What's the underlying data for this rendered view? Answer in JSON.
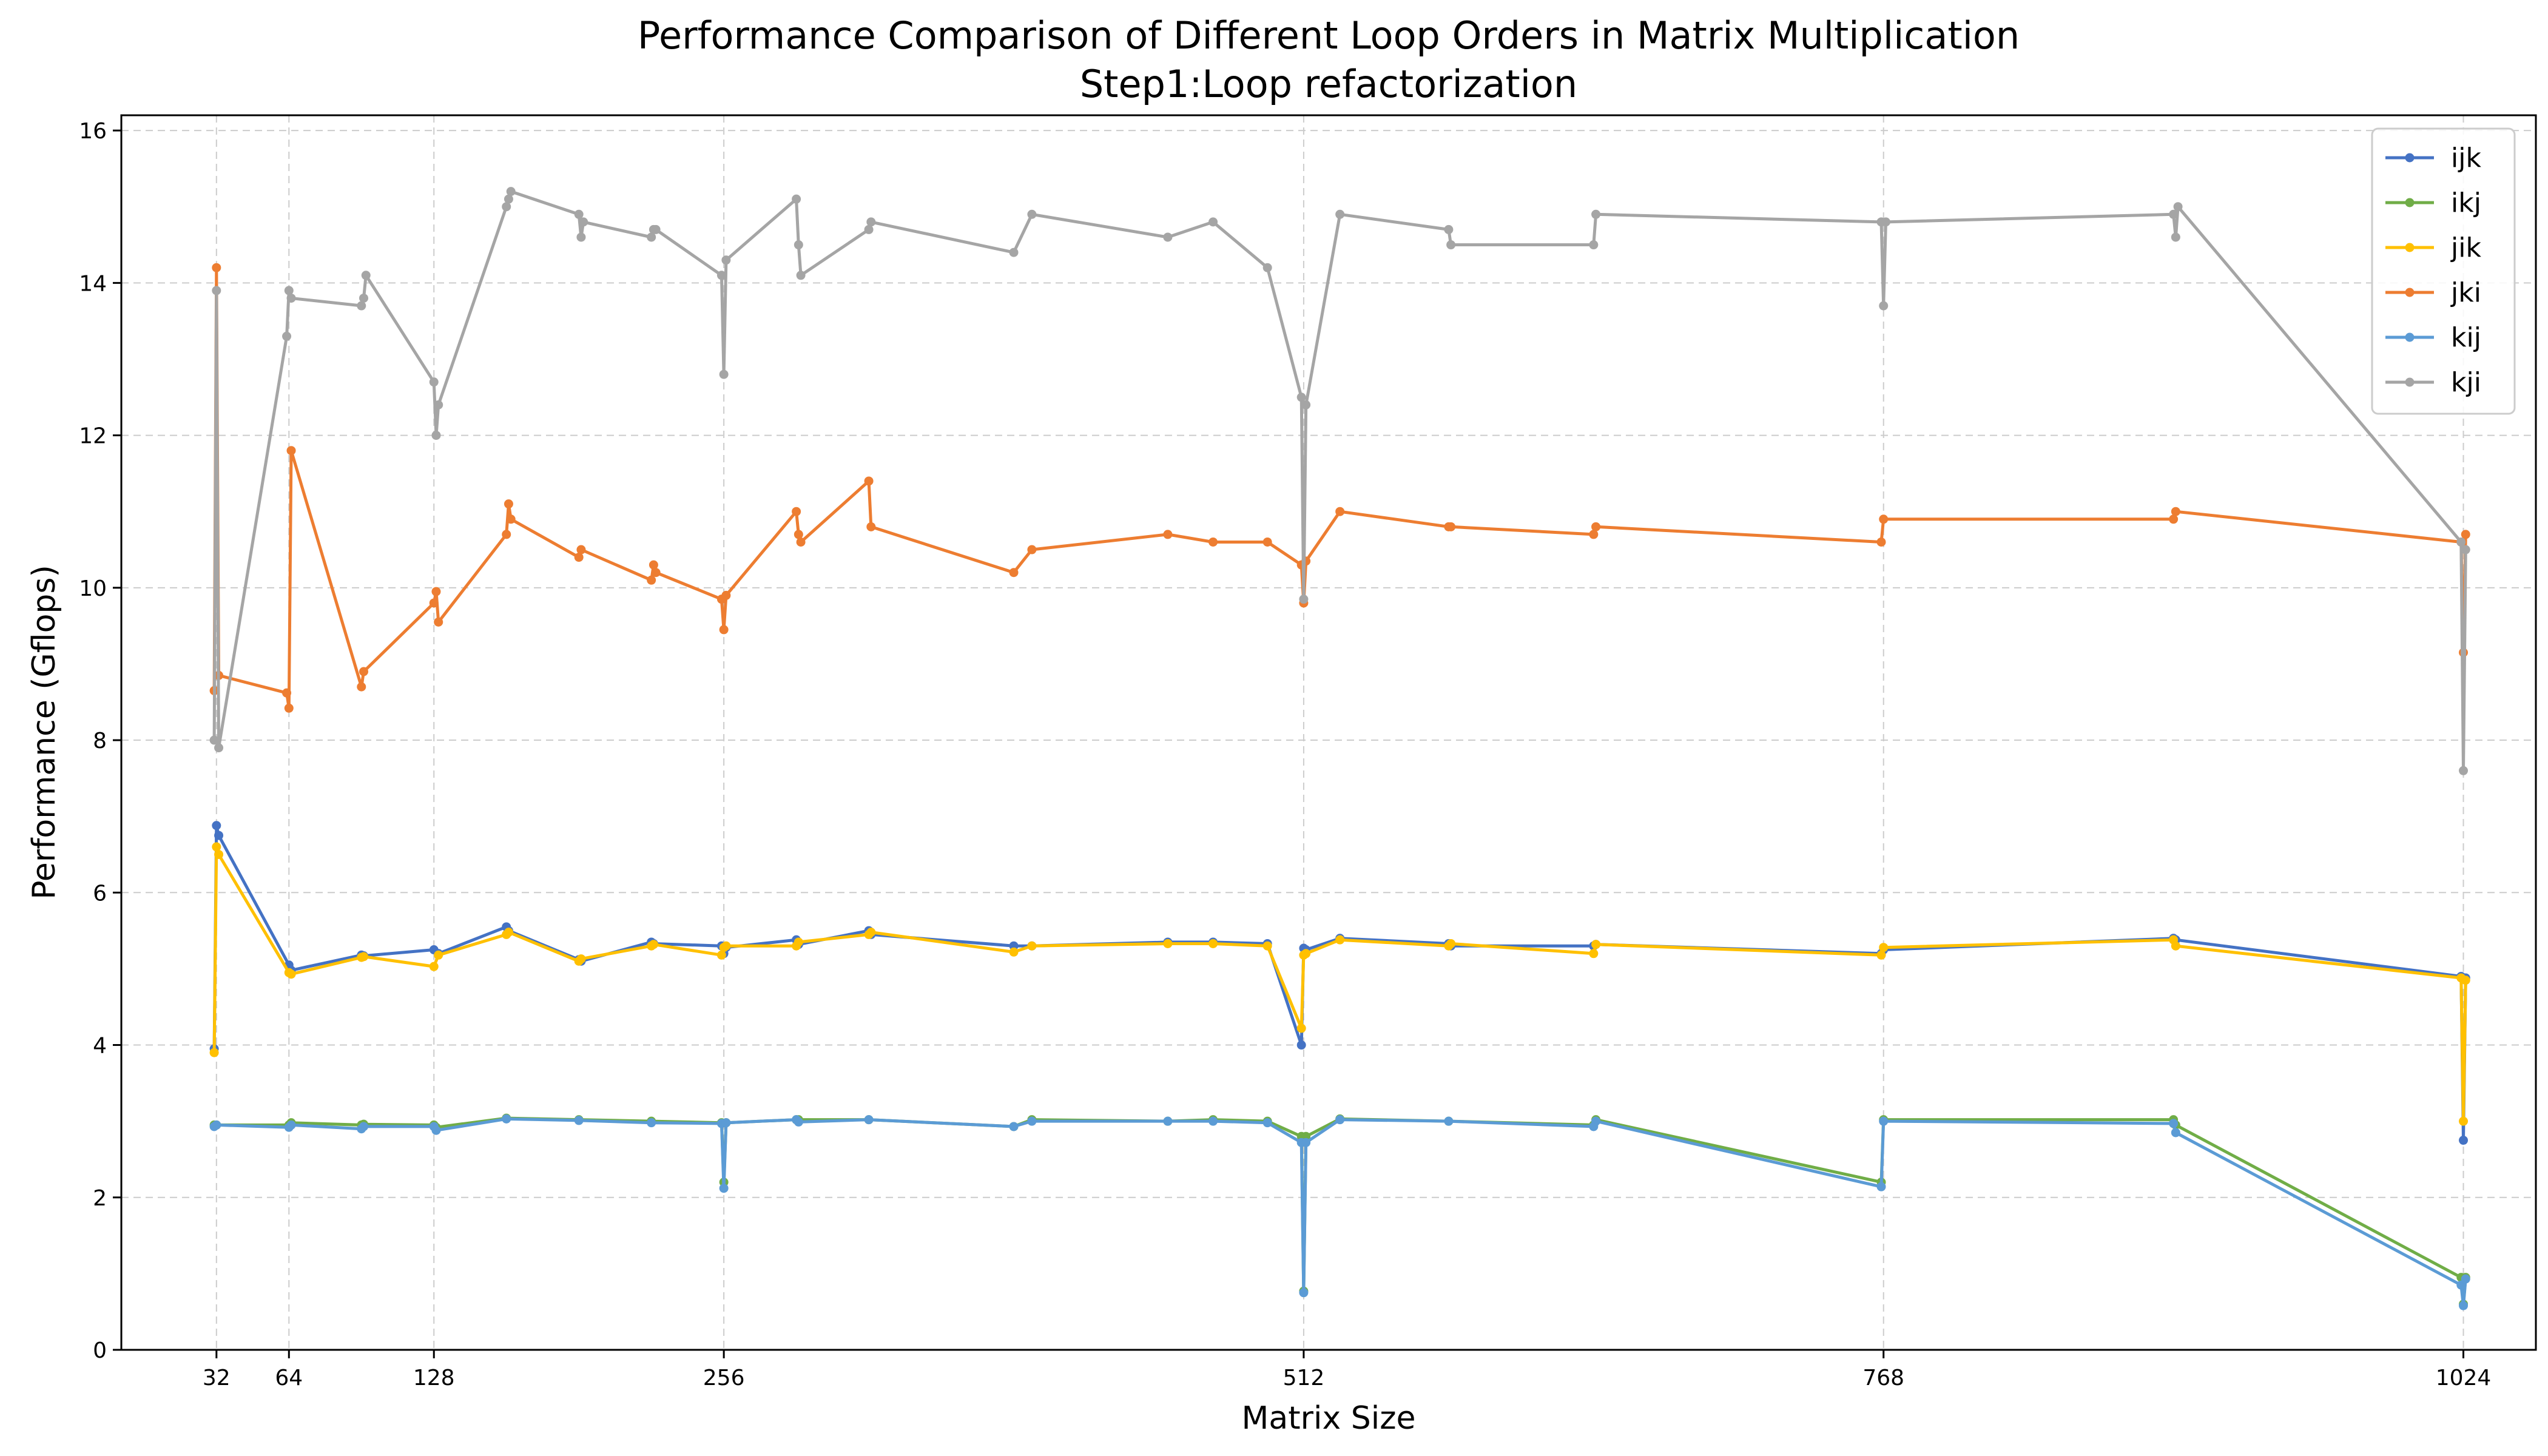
{
  "chart_data": {
    "type": "line",
    "title": "Performance Comparison of Different Loop Orders in Matrix Multiplication",
    "subtitle": "Step1:Loop refactorization",
    "xlabel": "Matrix Size",
    "ylabel": "Performance (Gflops)",
    "xlim": [
      -10,
      1056
    ],
    "ylim": [
      0,
      16.2
    ],
    "xticks": [
      32,
      64,
      128,
      256,
      512,
      768,
      1024
    ],
    "yticks": [
      0,
      2,
      4,
      6,
      8,
      10,
      12,
      14,
      16
    ],
    "grid": true,
    "legend_position": "top-right",
    "series": [
      {
        "name": "ijk",
        "color": "#4472c4",
        "points": [
          [
            31,
            3.95
          ],
          [
            32,
            6.88
          ],
          [
            33,
            6.75
          ],
          [
            64,
            5.05
          ],
          [
            65,
            4.98
          ],
          [
            96,
            5.18
          ],
          [
            97,
            5.17
          ],
          [
            128,
            5.25
          ],
          [
            130,
            5.2
          ],
          [
            160,
            5.55
          ],
          [
            161,
            5.5
          ],
          [
            192,
            5.12
          ],
          [
            193,
            5.1
          ],
          [
            224,
            5.35
          ],
          [
            225,
            5.33
          ],
          [
            255,
            5.3
          ],
          [
            256,
            5.2
          ],
          [
            257,
            5.28
          ],
          [
            288,
            5.38
          ],
          [
            289,
            5.32
          ],
          [
            320,
            5.5
          ],
          [
            321,
            5.45
          ],
          [
            384,
            5.3
          ],
          [
            392,
            5.3
          ],
          [
            452,
            5.35
          ],
          [
            472,
            5.35
          ],
          [
            496,
            5.33
          ],
          [
            511,
            4.0
          ],
          [
            512,
            5.27
          ],
          [
            513,
            5.25
          ],
          [
            528,
            5.4
          ],
          [
            576,
            5.33
          ],
          [
            577,
            5.3
          ],
          [
            640,
            5.3
          ],
          [
            641,
            5.32
          ],
          [
            767,
            5.2
          ],
          [
            768,
            5.25
          ],
          [
            896,
            5.4
          ],
          [
            897,
            5.38
          ],
          [
            1023,
            4.9
          ],
          [
            1024,
            2.75
          ],
          [
            1025,
            4.88
          ]
        ]
      },
      {
        "name": "ikj",
        "color": "#70ad47",
        "points": [
          [
            31,
            2.95
          ],
          [
            32,
            2.95
          ],
          [
            64,
            2.95
          ],
          [
            65,
            2.98
          ],
          [
            96,
            2.95
          ],
          [
            97,
            2.96
          ],
          [
            128,
            2.95
          ],
          [
            129,
            2.92
          ],
          [
            160,
            3.04
          ],
          [
            192,
            3.02
          ],
          [
            224,
            3.0
          ],
          [
            255,
            2.98
          ],
          [
            256,
            2.2
          ],
          [
            257,
            2.98
          ],
          [
            288,
            3.02
          ],
          [
            289,
            3.02
          ],
          [
            320,
            3.02
          ],
          [
            384,
            2.93
          ],
          [
            392,
            3.02
          ],
          [
            452,
            3.0
          ],
          [
            472,
            3.02
          ],
          [
            496,
            3.0
          ],
          [
            511,
            2.8
          ],
          [
            512,
            0.77
          ],
          [
            513,
            2.8
          ],
          [
            528,
            3.03
          ],
          [
            576,
            3.0
          ],
          [
            640,
            2.95
          ],
          [
            641,
            3.02
          ],
          [
            767,
            2.2
          ],
          [
            768,
            3.02
          ],
          [
            896,
            3.02
          ],
          [
            897,
            2.95
          ],
          [
            1023,
            0.95
          ],
          [
            1024,
            0.6
          ],
          [
            1025,
            0.95
          ]
        ]
      },
      {
        "name": "jik",
        "color": "#ffc000",
        "points": [
          [
            31,
            3.9
          ],
          [
            32,
            6.6
          ],
          [
            33,
            6.5
          ],
          [
            64,
            4.95
          ],
          [
            65,
            4.93
          ],
          [
            96,
            5.15
          ],
          [
            97,
            5.16
          ],
          [
            128,
            5.03
          ],
          [
            130,
            5.18
          ],
          [
            160,
            5.45
          ],
          [
            161,
            5.48
          ],
          [
            192,
            5.1
          ],
          [
            193,
            5.13
          ],
          [
            224,
            5.3
          ],
          [
            225,
            5.32
          ],
          [
            255,
            5.18
          ],
          [
            256,
            5.28
          ],
          [
            257,
            5.3
          ],
          [
            288,
            5.3
          ],
          [
            289,
            5.35
          ],
          [
            320,
            5.45
          ],
          [
            321,
            5.48
          ],
          [
            384,
            5.22
          ],
          [
            392,
            5.3
          ],
          [
            452,
            5.33
          ],
          [
            472,
            5.33
          ],
          [
            496,
            5.3
          ],
          [
            511,
            4.22
          ],
          [
            512,
            5.18
          ],
          [
            513,
            5.2
          ],
          [
            528,
            5.38
          ],
          [
            576,
            5.3
          ],
          [
            577,
            5.33
          ],
          [
            640,
            5.2
          ],
          [
            641,
            5.32
          ],
          [
            767,
            5.18
          ],
          [
            768,
            5.28
          ],
          [
            896,
            5.38
          ],
          [
            897,
            5.3
          ],
          [
            1023,
            4.88
          ],
          [
            1024,
            3.0
          ],
          [
            1025,
            4.85
          ]
        ]
      },
      {
        "name": "jki",
        "color": "#ed7d31",
        "points": [
          [
            31,
            8.65
          ],
          [
            32,
            14.2
          ],
          [
            33,
            8.85
          ],
          [
            63,
            8.62
          ],
          [
            64,
            8.42
          ],
          [
            65,
            11.8
          ],
          [
            96,
            8.7
          ],
          [
            97,
            8.9
          ],
          [
            128,
            9.8
          ],
          [
            129,
            9.95
          ],
          [
            130,
            9.55
          ],
          [
            160,
            10.7
          ],
          [
            161,
            11.1
          ],
          [
            162,
            10.9
          ],
          [
            192,
            10.4
          ],
          [
            193,
            10.5
          ],
          [
            224,
            10.1
          ],
          [
            225,
            10.3
          ],
          [
            226,
            10.2
          ],
          [
            255,
            9.85
          ],
          [
            256,
            9.45
          ],
          [
            257,
            9.9
          ],
          [
            288,
            11.0
          ],
          [
            289,
            10.7
          ],
          [
            290,
            10.6
          ],
          [
            320,
            11.4
          ],
          [
            321,
            10.8
          ],
          [
            384,
            10.2
          ],
          [
            392,
            10.5
          ],
          [
            452,
            10.7
          ],
          [
            472,
            10.6
          ],
          [
            496,
            10.6
          ],
          [
            511,
            10.3
          ],
          [
            512,
            9.8
          ],
          [
            513,
            10.35
          ],
          [
            528,
            11.0
          ],
          [
            576,
            10.8
          ],
          [
            577,
            10.8
          ],
          [
            640,
            10.7
          ],
          [
            641,
            10.8
          ],
          [
            767,
            10.6
          ],
          [
            768,
            10.9
          ],
          [
            896,
            10.9
          ],
          [
            897,
            11.0
          ],
          [
            1023,
            10.6
          ],
          [
            1024,
            9.15
          ],
          [
            1025,
            10.7
          ]
        ]
      },
      {
        "name": "kij",
        "color": "#5b9bd5",
        "points": [
          [
            31,
            2.93
          ],
          [
            32,
            2.95
          ],
          [
            64,
            2.92
          ],
          [
            65,
            2.95
          ],
          [
            96,
            2.9
          ],
          [
            97,
            2.93
          ],
          [
            128,
            2.93
          ],
          [
            129,
            2.88
          ],
          [
            160,
            3.03
          ],
          [
            192,
            3.01
          ],
          [
            224,
            2.98
          ],
          [
            255,
            2.97
          ],
          [
            256,
            2.12
          ],
          [
            257,
            2.98
          ],
          [
            288,
            3.02
          ],
          [
            289,
            2.99
          ],
          [
            320,
            3.02
          ],
          [
            384,
            2.93
          ],
          [
            392,
            3.0
          ],
          [
            452,
            3.0
          ],
          [
            472,
            3.0
          ],
          [
            496,
            2.98
          ],
          [
            511,
            2.72
          ],
          [
            512,
            0.75
          ],
          [
            513,
            2.72
          ],
          [
            528,
            3.02
          ],
          [
            576,
            3.0
          ],
          [
            640,
            2.93
          ],
          [
            641,
            3.0
          ],
          [
            767,
            2.14
          ],
          [
            768,
            3.0
          ],
          [
            896,
            2.97
          ],
          [
            897,
            2.85
          ],
          [
            1023,
            0.85
          ],
          [
            1024,
            0.58
          ],
          [
            1025,
            0.93
          ]
        ]
      },
      {
        "name": "kji",
        "color": "#a5a5a5",
        "points": [
          [
            31,
            8.0
          ],
          [
            32,
            13.9
          ],
          [
            33,
            7.9
          ],
          [
            63,
            13.3
          ],
          [
            64,
            13.9
          ],
          [
            65,
            13.8
          ],
          [
            96,
            13.7
          ],
          [
            97,
            13.8
          ],
          [
            98,
            14.1
          ],
          [
            128,
            12.7
          ],
          [
            129,
            12.0
          ],
          [
            130,
            12.4
          ],
          [
            160,
            15.0
          ],
          [
            161,
            15.1
          ],
          [
            162,
            15.2
          ],
          [
            192,
            14.9
          ],
          [
            193,
            14.6
          ],
          [
            194,
            14.8
          ],
          [
            224,
            14.6
          ],
          [
            225,
            14.7
          ],
          [
            226,
            14.7
          ],
          [
            255,
            14.1
          ],
          [
            256,
            12.8
          ],
          [
            257,
            14.3
          ],
          [
            288,
            15.1
          ],
          [
            289,
            14.5
          ],
          [
            290,
            14.1
          ],
          [
            320,
            14.7
          ],
          [
            321,
            14.8
          ],
          [
            384,
            14.4
          ],
          [
            392,
            14.9
          ],
          [
            452,
            14.6
          ],
          [
            472,
            14.8
          ],
          [
            496,
            14.2
          ],
          [
            511,
            12.5
          ],
          [
            512,
            9.85
          ],
          [
            513,
            12.4
          ],
          [
            528,
            14.9
          ],
          [
            576,
            14.7
          ],
          [
            577,
            14.5
          ],
          [
            640,
            14.5
          ],
          [
            641,
            14.9
          ],
          [
            767,
            14.8
          ],
          [
            768,
            13.7
          ],
          [
            769,
            14.8
          ],
          [
            896,
            14.9
          ],
          [
            897,
            14.6
          ],
          [
            898,
            15.0
          ],
          [
            1023,
            10.6
          ],
          [
            1024,
            7.6
          ],
          [
            1025,
            10.5
          ]
        ]
      }
    ]
  }
}
